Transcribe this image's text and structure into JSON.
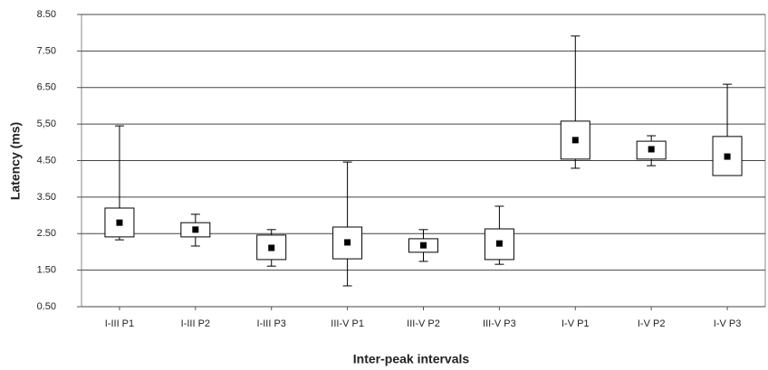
{
  "chart_data": {
    "type": "box",
    "x_label": "Inter-peak intervals",
    "y_label": "Latency (ms)",
    "categories": [
      "I-III P1",
      "I-III P2",
      "I-III P3",
      "III-V P1",
      "III-V P2",
      "III-V P3",
      "I-V P1",
      "I-V P2",
      "I-V P3"
    ],
    "max": [
      5.45,
      3.03,
      2.61,
      4.46,
      2.61,
      3.25,
      7.91,
      5.18,
      6.59
    ],
    "q3": [
      3.2,
      2.8,
      2.46,
      2.68,
      2.36,
      2.63,
      5.58,
      5.03,
      5.16
    ],
    "mean": [
      2.8,
      2.61,
      2.11,
      2.26,
      2.18,
      2.23,
      5.06,
      4.81,
      4.61
    ],
    "q1": [
      2.41,
      2.41,
      1.79,
      1.81,
      1.99,
      1.79,
      4.54,
      4.54,
      4.09
    ],
    "min": [
      2.33,
      2.16,
      1.61,
      1.07,
      1.74,
      1.66,
      4.29,
      4.36,
      4.26
    ],
    "color": "#000000",
    "ylim": [
      0.5,
      8.5
    ],
    "yticks": [
      {
        "value": 0.5,
        "label": "0.50"
      },
      {
        "value": 1.5,
        "label": "1.50"
      },
      {
        "value": 2.5,
        "label": "2.50"
      },
      {
        "value": 3.5,
        "label": "3.50"
      },
      {
        "value": 4.5,
        "label": "4.50"
      },
      {
        "value": 5.5,
        "label": "5,50"
      },
      {
        "value": 6.5,
        "label": "6.50"
      },
      {
        "value": 7.5,
        "label": "7.50"
      },
      {
        "value": 8.5,
        "label": "8.50"
      }
    ],
    "grid": true
  }
}
